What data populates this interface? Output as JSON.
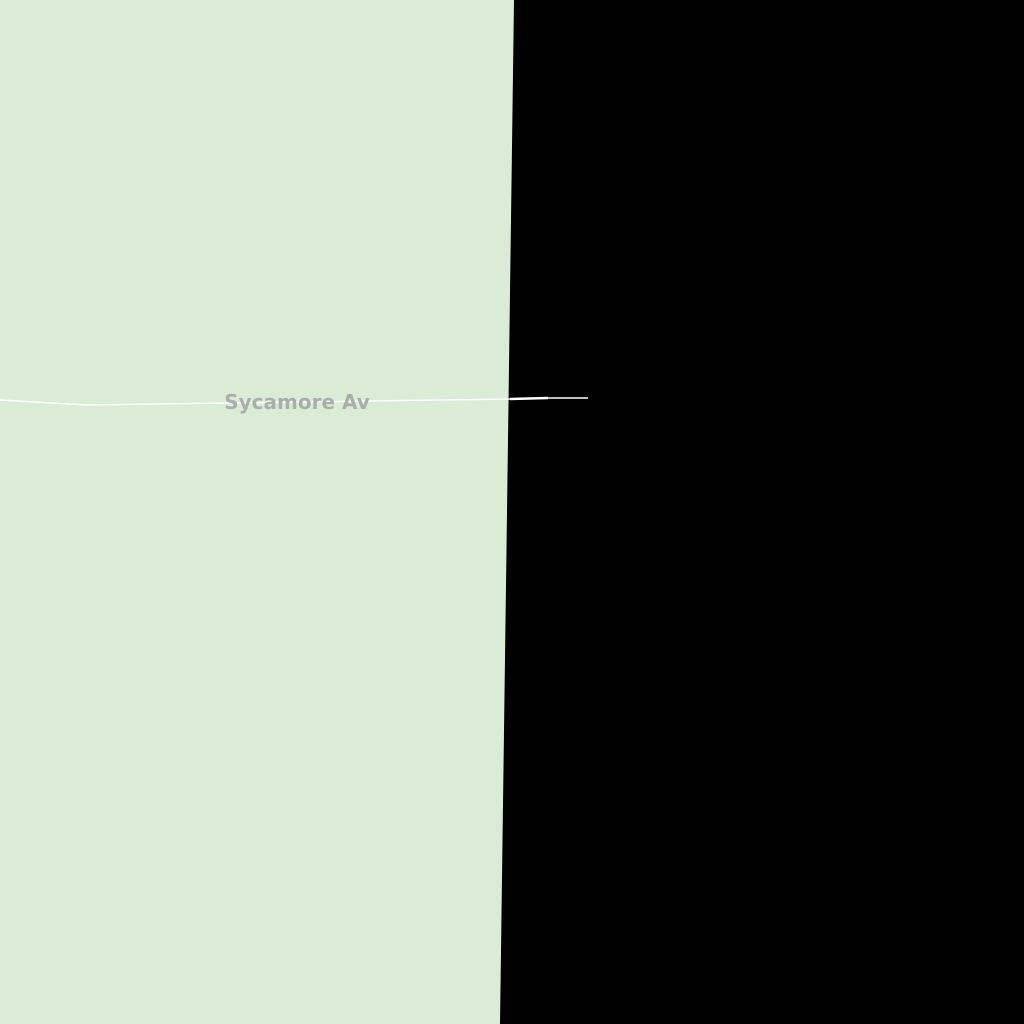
{
  "map": {
    "colors": {
      "park": "#dbecd6",
      "void": "#000000",
      "road": "#ffffff",
      "label": "#a9aeaa"
    },
    "streets": [
      {
        "name": "Sycamore Av"
      }
    ]
  }
}
